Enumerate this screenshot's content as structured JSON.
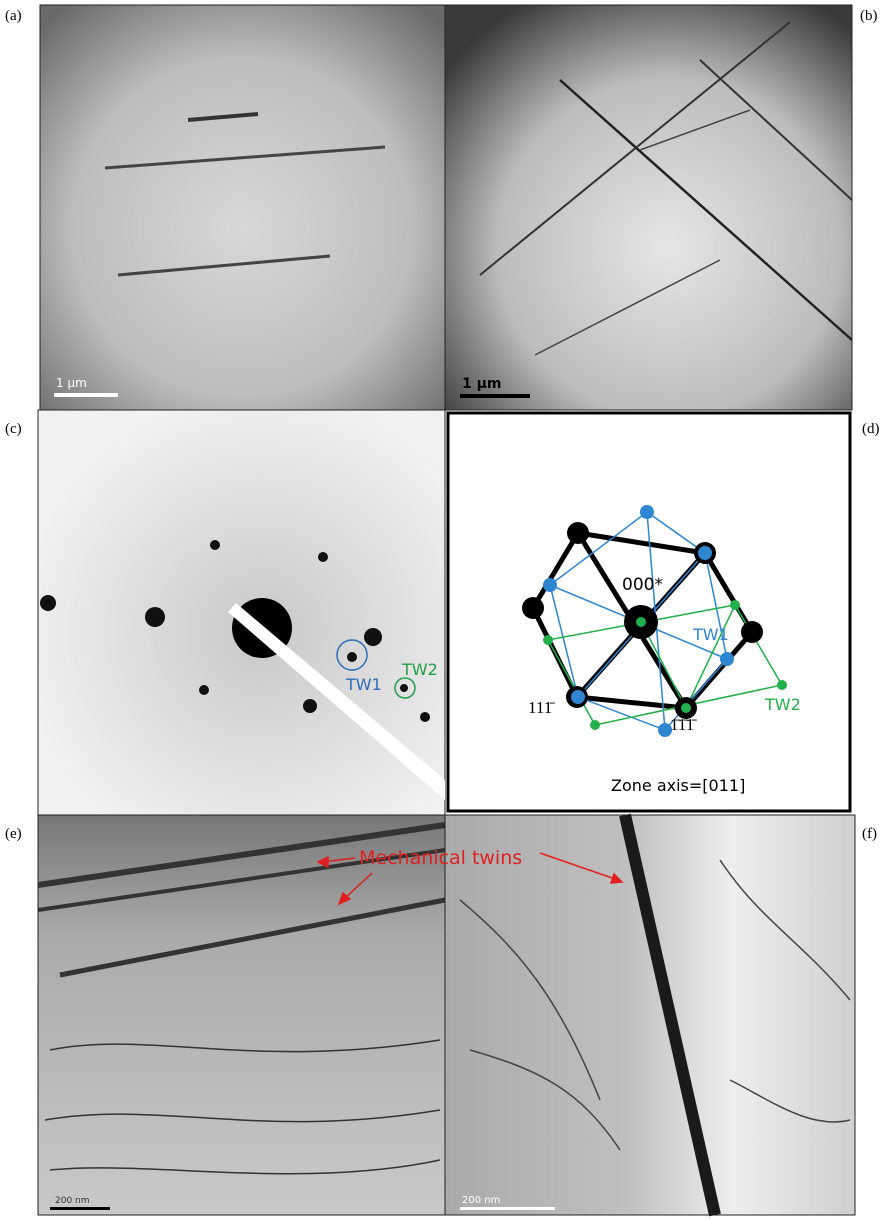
{
  "panels": [
    {
      "label": "(a)",
      "scale_bar": "1 µm"
    },
    {
      "label": "(b)",
      "scale_bar": "1 µm"
    },
    {
      "label": "(c)",
      "spots": [
        "TW1",
        "TW2"
      ]
    },
    {
      "label": "(d)",
      "origin": "000*",
      "twins": [
        "TW1",
        "TW2"
      ],
      "indices": [
        "111̄",
        "1̄1̄1̄"
      ],
      "zone_axis": "Zone axis=[011]"
    },
    {
      "label": "(e)",
      "annotation": "Mechanical twins",
      "scale_bar": "200 nm"
    },
    {
      "label": "(f)",
      "scale_bar": "200 nm"
    }
  ]
}
